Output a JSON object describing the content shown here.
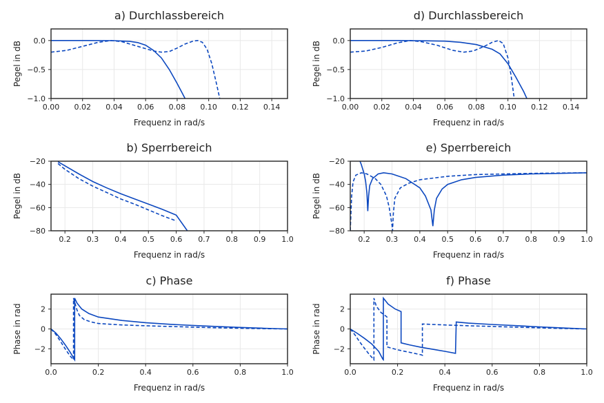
{
  "figure": {
    "line_color": "#0b47bf",
    "grid_color": "#e8e8e8",
    "axes_color": "#222222"
  },
  "chart_data": [
    {
      "id": "a",
      "type": "line",
      "title": "a) Durchlassbereich",
      "xlabel": "Frequenz in rad/s",
      "ylabel": "Pegel in dB",
      "xlim": [
        0.0,
        0.15
      ],
      "ylim": [
        -1.0,
        0.2
      ],
      "xticks": [
        0.0,
        0.02,
        0.04,
        0.06,
        0.08,
        0.1,
        0.12,
        0.14
      ],
      "xtick_labels": [
        "0.00",
        "0.02",
        "0.04",
        "0.06",
        "0.08",
        "0.10",
        "0.12",
        "0.14"
      ],
      "yticks": [
        0.0,
        -0.5,
        -1.0
      ],
      "ytick_labels": [
        "0.0",
        "−0.5",
        "−1.0"
      ],
      "grid": true,
      "series": [
        {
          "style": "solid",
          "x": [
            0,
            0.02,
            0.04,
            0.05,
            0.055,
            0.06,
            0.065,
            0.07,
            0.075,
            0.08,
            0.085
          ],
          "y": [
            0,
            0,
            -0.002,
            -0.015,
            -0.035,
            -0.08,
            -0.17,
            -0.3,
            -0.5,
            -0.74,
            -1.0
          ]
        },
        {
          "style": "dashed",
          "x": [
            0,
            0.01,
            0.02,
            0.03,
            0.038,
            0.045,
            0.055,
            0.065,
            0.07,
            0.075,
            0.08,
            0.085,
            0.09,
            0.093,
            0.096,
            0.099,
            0.102,
            0.105,
            0.107
          ],
          "y": [
            -0.2,
            -0.17,
            -0.1,
            -0.03,
            0.0,
            -0.02,
            -0.1,
            -0.18,
            -0.2,
            -0.19,
            -0.13,
            -0.06,
            -0.01,
            0.0,
            -0.03,
            -0.15,
            -0.4,
            -0.75,
            -1.0
          ]
        }
      ]
    },
    {
      "id": "d",
      "type": "line",
      "title": "d) Durchlassbereich",
      "xlabel": "Frequenz in rad/s",
      "ylabel": "Pegel in dB",
      "xlim": [
        0.0,
        0.15
      ],
      "ylim": [
        -1.0,
        0.2
      ],
      "xticks": [
        0.0,
        0.02,
        0.04,
        0.06,
        0.08,
        0.1,
        0.12,
        0.14
      ],
      "xtick_labels": [
        "0.00",
        "0.02",
        "0.04",
        "0.06",
        "0.08",
        "0.10",
        "0.12",
        "0.14"
      ],
      "yticks": [
        0.0,
        -0.5,
        -1.0
      ],
      "ytick_labels": [
        "0.0",
        "−0.5",
        "−1.0"
      ],
      "grid": true,
      "series": [
        {
          "style": "solid",
          "x": [
            0,
            0.03,
            0.05,
            0.06,
            0.07,
            0.08,
            0.09,
            0.095,
            0.1,
            0.105,
            0.11,
            0.112
          ],
          "y": [
            0,
            0,
            -0.005,
            -0.01,
            -0.03,
            -0.07,
            -0.15,
            -0.23,
            -0.4,
            -0.63,
            -0.88,
            -1.0
          ]
        },
        {
          "style": "dashed",
          "x": [
            0,
            0.01,
            0.02,
            0.03,
            0.038,
            0.045,
            0.055,
            0.065,
            0.072,
            0.078,
            0.085,
            0.09,
            0.094,
            0.097,
            0.1,
            0.102,
            0.104
          ],
          "y": [
            -0.2,
            -0.18,
            -0.12,
            -0.04,
            0.0,
            -0.02,
            -0.08,
            -0.17,
            -0.2,
            -0.18,
            -0.1,
            -0.03,
            0.0,
            -0.05,
            -0.3,
            -0.6,
            -1.0
          ]
        }
      ]
    },
    {
      "id": "b",
      "type": "line",
      "title": "b) Sperrbereich",
      "xlabel": "Frequenz in rad/s",
      "ylabel": "Pegel in dB",
      "xlim": [
        0.15,
        1.0
      ],
      "ylim": [
        -80,
        -20
      ],
      "xticks": [
        0.2,
        0.3,
        0.4,
        0.5,
        0.6,
        0.7,
        0.8,
        0.9,
        1.0
      ],
      "xtick_labels": [
        "0.2",
        "0.3",
        "0.4",
        "0.5",
        "0.6",
        "0.7",
        "0.8",
        "0.9",
        "1.0"
      ],
      "yticks": [
        -20,
        -40,
        -60,
        -80
      ],
      "ytick_labels": [
        "−20",
        "−40",
        "−60",
        "−80"
      ],
      "grid": true,
      "series": [
        {
          "style": "solid",
          "x": [
            0.175,
            0.2,
            0.25,
            0.3,
            0.35,
            0.4,
            0.45,
            0.5,
            0.55,
            0.6,
            0.64
          ],
          "y": [
            -20.5,
            -24,
            -31,
            -37.5,
            -43,
            -48,
            -52.5,
            -57,
            -61.5,
            -66.5,
            -80
          ]
        },
        {
          "style": "dashed",
          "x": [
            0.175,
            0.2,
            0.25,
            0.3,
            0.35,
            0.4,
            0.45,
            0.5,
            0.55,
            0.6
          ],
          "y": [
            -22,
            -27,
            -35,
            -41.5,
            -47,
            -52.5,
            -57,
            -62,
            -67,
            -71.5
          ]
        }
      ]
    },
    {
      "id": "e",
      "type": "line",
      "title": "e) Sperrbereich",
      "xlabel": "Frequenz in rad/s",
      "ylabel": "Pegel in dB",
      "xlim": [
        0.15,
        1.0
      ],
      "ylim": [
        -80,
        -20
      ],
      "xticks": [
        0.2,
        0.3,
        0.4,
        0.5,
        0.6,
        0.7,
        0.8,
        0.9,
        1.0
      ],
      "xtick_labels": [
        "0.2",
        "0.3",
        "0.4",
        "0.5",
        "0.6",
        "0.7",
        "0.8",
        "0.9",
        "1.0"
      ],
      "yticks": [
        -20,
        -40,
        -60,
        -80
      ],
      "ytick_labels": [
        "−20",
        "−40",
        "−60",
        "−80"
      ],
      "grid": true,
      "series": [
        {
          "style": "solid",
          "x": [
            0.185,
            0.19,
            0.2,
            0.205,
            0.21,
            0.213,
            0.216,
            0.22,
            0.23,
            0.25,
            0.27,
            0.3,
            0.35,
            0.4,
            0.42,
            0.44,
            0.447,
            0.452,
            0.46,
            0.48,
            0.5,
            0.55,
            0.6,
            0.7,
            0.8,
            0.9,
            1.0
          ],
          "y": [
            -20,
            -23,
            -31,
            -37,
            -48,
            -63,
            -50,
            -41,
            -35,
            -31,
            -30,
            -31,
            -35,
            -43,
            -50,
            -62,
            -76,
            -62,
            -52,
            -44,
            -40,
            -36,
            -34,
            -32,
            -31,
            -30.5,
            -30
          ]
        },
        {
          "style": "dashed",
          "x": [
            0.15,
            0.155,
            0.16,
            0.17,
            0.19,
            0.21,
            0.24,
            0.26,
            0.28,
            0.29,
            0.3,
            0.302,
            0.305,
            0.31,
            0.33,
            0.36,
            0.4,
            0.45,
            0.5,
            0.6,
            0.7,
            0.8,
            0.9,
            1.0
          ],
          "y": [
            -80,
            -50,
            -38,
            -32,
            -30,
            -31,
            -35,
            -40,
            -50,
            -60,
            -75,
            -80,
            -65,
            -52,
            -43,
            -39,
            -36,
            -34.5,
            -33,
            -31.5,
            -31,
            -30.5,
            -30.2,
            -30
          ]
        }
      ]
    },
    {
      "id": "c",
      "type": "line",
      "title": "c) Phase",
      "xlabel": "Frequenz in rad/s",
      "ylabel": "Phase in rad",
      "xlim": [
        0.0,
        1.0
      ],
      "ylim": [
        -3.5,
        3.5
      ],
      "xticks": [
        0.0,
        0.2,
        0.4,
        0.6,
        0.8,
        1.0
      ],
      "xtick_labels": [
        "0.0",
        "0.2",
        "0.4",
        "0.6",
        "0.8",
        "1.0"
      ],
      "yticks": [
        2,
        0,
        -2
      ],
      "ytick_labels": [
        "2",
        "0",
        "−2"
      ],
      "grid": true,
      "series": [
        {
          "style": "solid",
          "x": [
            0,
            0.02,
            0.04,
            0.06,
            0.08,
            0.1,
            0.1,
            0.11,
            0.13,
            0.16,
            0.2,
            0.3,
            0.4,
            0.5,
            0.6,
            0.7,
            0.8,
            0.9,
            1.0
          ],
          "y": [
            0,
            -0.4,
            -0.95,
            -1.6,
            -2.3,
            -3.1,
            3.1,
            2.6,
            2.0,
            1.55,
            1.2,
            0.85,
            0.63,
            0.47,
            0.35,
            0.25,
            0.15,
            0.07,
            0
          ]
        },
        {
          "style": "dashed",
          "x": [
            0,
            0.02,
            0.04,
            0.06,
            0.08,
            0.095,
            0.095,
            0.1,
            0.11,
            0.12,
            0.14,
            0.17,
            0.2,
            0.3,
            0.4,
            0.5,
            0.6,
            0.7,
            0.8,
            0.9,
            1.0
          ],
          "y": [
            0,
            -0.55,
            -1.25,
            -2.0,
            -2.7,
            -3.1,
            3.1,
            2.7,
            1.9,
            1.35,
            0.95,
            0.7,
            0.55,
            0.4,
            0.32,
            0.25,
            0.18,
            0.12,
            0.07,
            0.03,
            0
          ]
        }
      ]
    },
    {
      "id": "f",
      "type": "line",
      "title": "f) Phase",
      "xlabel": "Frequenz in rad/s",
      "ylabel": "Phase in rad",
      "xlim": [
        0.0,
        1.0
      ],
      "ylim": [
        -3.5,
        3.5
      ],
      "xticks": [
        0.0,
        0.2,
        0.4,
        0.6,
        0.8,
        1.0
      ],
      "xtick_labels": [
        "0.0",
        "0.2",
        "0.4",
        "0.6",
        "0.8",
        "1.0"
      ],
      "yticks": [
        2,
        0,
        -2
      ],
      "ytick_labels": [
        "2",
        "0",
        "−2"
      ],
      "grid": true,
      "series": [
        {
          "style": "solid",
          "x": [
            0,
            0.03,
            0.06,
            0.09,
            0.12,
            0.138,
            0.14,
            0.14,
            0.16,
            0.19,
            0.215,
            0.215,
            0.25,
            0.3,
            0.35,
            0.4,
            0.445,
            0.448,
            0.5,
            0.6,
            0.7,
            0.8,
            0.9,
            1.0
          ],
          "y": [
            0,
            -0.45,
            -0.95,
            -1.5,
            -2.25,
            -3.05,
            -3.1,
            3.1,
            2.5,
            2.0,
            1.75,
            -1.4,
            -1.6,
            -1.85,
            -2.05,
            -2.25,
            -2.45,
            0.7,
            0.58,
            0.45,
            0.33,
            0.21,
            0.1,
            0
          ]
        },
        {
          "style": "dashed",
          "x": [
            0,
            0.02,
            0.04,
            0.06,
            0.08,
            0.1,
            0.1,
            0.11,
            0.13,
            0.15,
            0.155,
            0.155,
            0.2,
            0.25,
            0.3,
            0.305,
            0.305,
            0.4,
            0.5,
            0.6,
            0.7,
            0.8,
            0.9,
            1.0
          ],
          "y": [
            0,
            -0.6,
            -1.3,
            -1.95,
            -2.55,
            -3.1,
            3.1,
            2.3,
            1.65,
            1.3,
            1.2,
            -1.8,
            -2.1,
            -2.35,
            -2.6,
            -2.65,
            0.5,
            0.4,
            0.32,
            0.25,
            0.18,
            0.11,
            0.05,
            0
          ]
        }
      ]
    }
  ]
}
